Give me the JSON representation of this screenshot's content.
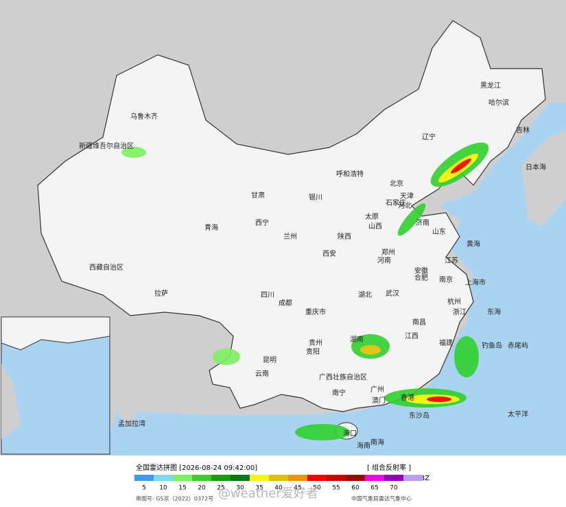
{
  "map": {
    "labels": [
      "乌鲁木齐",
      "新疆维吾尔自治区",
      "西藏自治区",
      "青海",
      "西宁",
      "兰州",
      "银川",
      "呼和浩特",
      "哈尔滨",
      "黑龙江",
      "北京",
      "天津",
      "石家庄",
      "太原",
      "济南",
      "西安",
      "郑州",
      "合肥",
      "南京",
      "上海市",
      "杭州",
      "武汉",
      "成都",
      "重庆市",
      "拉萨",
      "贵阳",
      "昆明",
      "南昌",
      "广西壮族自治区",
      "南宁",
      "广州",
      "海口",
      "东沙岛",
      "钓鱼岛",
      "赤尾屿",
      "日本海",
      "黄海",
      "东海",
      "太平洋",
      "孟加拉湾",
      "南海",
      "四川",
      "云南",
      "湖北",
      "湖南",
      "江西",
      "福建",
      "河南",
      "山东",
      "江苏",
      "安徽",
      "陕西",
      "山西",
      "河北",
      "辽宁",
      "吉林",
      "贵州",
      "海南",
      "甘肃",
      "浙江",
      "澳门",
      "香港"
    ]
  },
  "legend": {
    "title": "全国雷达拼图 [2026-08-24 09:42:00]",
    "product": "[ 组合反射率 ]",
    "unit": "dBZ",
    "levels": [
      5,
      10,
      15,
      20,
      25,
      30,
      35,
      40,
      45,
      50,
      55,
      60,
      65,
      70
    ],
    "colors": [
      "#3a9cf0",
      "#6fe0f0",
      "#7cf060",
      "#30d030",
      "#10a010",
      "#0a780a",
      "#f8f800",
      "#e0c000",
      "#f89000",
      "#f80000",
      "#d00000",
      "#a00000",
      "#f000f0",
      "#9000c0",
      "#b8a0f0"
    ]
  },
  "footer": {
    "approval": "审图号: GS京（2022）0372号",
    "source": "中国气象局雷达气象中心"
  },
  "watermark": "@weather爱好者"
}
